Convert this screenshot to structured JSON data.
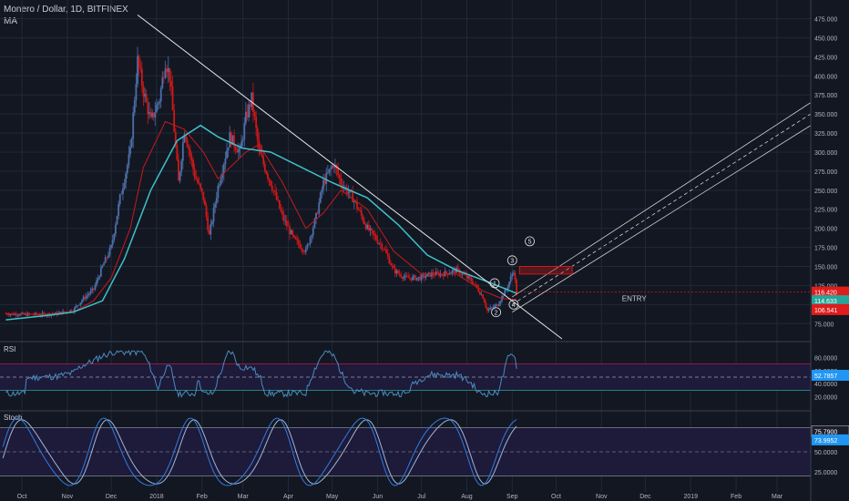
{
  "header": {
    "title": "Monero / Dollar, 1D, BITFINEX",
    "indicator": "MA"
  },
  "colors": {
    "background": "#131722",
    "grid": "#1e2a38",
    "candle_up": "#4d6fa8",
    "candle_down": "#d01818",
    "ma_fast": "#c41c1c",
    "ma_slow": "#3fc1c9",
    "trendline": "#e8e8e8",
    "rsi_line": "#4a8cbf",
    "stoch_k": "#2f7de0",
    "stoch_d": "#9fb6d8",
    "panel_fill": "#1d1a3a",
    "price_red": "#e01c1c",
    "price_teal": "#26a69a",
    "price_blue": "#2196f3"
  },
  "price_axis": {
    "ticks": [
      "475.000",
      "450.000",
      "425.000",
      "400.000",
      "375.000",
      "350.000",
      "325.000",
      "300.000",
      "275.000",
      "250.000",
      "225.000",
      "200.000",
      "175.000",
      "150.000",
      "125.000",
      "100.000",
      "75.000"
    ],
    "label_last": "116.420",
    "label_ma_slow": "114.633",
    "label_ma_fast": "106.541"
  },
  "time_axis": {
    "ticks": [
      "Oct",
      "Nov",
      "Dec",
      "2018",
      "Feb",
      "Mar",
      "Apr",
      "May",
      "Jun",
      "Jul",
      "Aug",
      "Sep",
      "Oct",
      "Nov",
      "Dec",
      "2019",
      "Feb",
      "Mar"
    ]
  },
  "annotations": {
    "entry_label": "ENTRY",
    "waves": [
      "1",
      "2",
      "3",
      "4",
      "5"
    ]
  },
  "rsi_panel": {
    "title": "RSI",
    "ticks": [
      "80.0000",
      "60.0000",
      "40.0000",
      "20.0000"
    ],
    "current": "52.7857"
  },
  "stoch_panel": {
    "title": "Stoch",
    "ticks": [
      "50.0000",
      "25.0000"
    ],
    "current_k": "75.7900",
    "current_d": "73.9952"
  },
  "chart_data": {
    "type": "candlestick",
    "title": "Monero / Dollar, 1D, BITFINEX",
    "xlabel": "",
    "ylabel": "",
    "ylim": [
      55,
      490
    ],
    "x_range": [
      "2017-09-16",
      "2019-03-24"
    ],
    "series": [
      {
        "name": "Close",
        "points": [
          [
            "2017-09-20",
            88
          ],
          [
            "2017-10-01",
            87
          ],
          [
            "2017-10-15",
            87
          ],
          [
            "2017-10-25",
            88
          ],
          [
            "2017-11-05",
            93
          ],
          [
            "2017-11-12",
            108
          ],
          [
            "2017-11-19",
            120
          ],
          [
            "2017-11-25",
            150
          ],
          [
            "2017-12-01",
            175
          ],
          [
            "2017-12-07",
            240
          ],
          [
            "2017-12-14",
            300
          ],
          [
            "2017-12-19",
            420
          ],
          [
            "2017-12-23",
            380
          ],
          [
            "2017-12-28",
            340
          ],
          [
            "2018-01-03",
            370
          ],
          [
            "2018-01-07",
            420
          ],
          [
            "2018-01-10",
            400
          ],
          [
            "2018-01-16",
            260
          ],
          [
            "2018-01-20",
            330
          ],
          [
            "2018-01-27",
            270
          ],
          [
            "2018-02-02",
            240
          ],
          [
            "2018-02-06",
            190
          ],
          [
            "2018-02-12",
            255
          ],
          [
            "2018-02-20",
            320
          ],
          [
            "2018-02-27",
            300
          ],
          [
            "2018-03-03",
            345
          ],
          [
            "2018-03-07",
            370
          ],
          [
            "2018-03-12",
            300
          ],
          [
            "2018-03-20",
            260
          ],
          [
            "2018-03-28",
            215
          ],
          [
            "2018-04-05",
            185
          ],
          [
            "2018-04-13",
            170
          ],
          [
            "2018-04-20",
            215
          ],
          [
            "2018-04-25",
            260
          ],
          [
            "2018-05-02",
            285
          ],
          [
            "2018-05-07",
            260
          ],
          [
            "2018-05-15",
            240
          ],
          [
            "2018-05-25",
            200
          ],
          [
            "2018-06-05",
            175
          ],
          [
            "2018-06-12",
            145
          ],
          [
            "2018-06-20",
            135
          ],
          [
            "2018-06-30",
            135
          ],
          [
            "2018-07-08",
            140
          ],
          [
            "2018-07-15",
            140
          ],
          [
            "2018-07-25",
            145
          ],
          [
            "2018-08-05",
            130
          ],
          [
            "2018-08-12",
            110
          ],
          [
            "2018-08-15",
            92
          ],
          [
            "2018-08-22",
            100
          ],
          [
            "2018-08-28",
            120
          ],
          [
            "2018-09-02",
            145
          ],
          [
            "2018-09-04",
            116
          ]
        ]
      },
      {
        "name": "",
        "points": [
          [
            "2017-09-20",
            88
          ],
          [
            "2017-10-15",
            87
          ],
          [
            "2017-11-05",
            90
          ],
          [
            "2017-11-19",
            105
          ],
          [
            "2017-12-01",
            135
          ],
          [
            "2017-12-14",
            200
          ],
          [
            "2017-12-23",
            280
          ],
          [
            "2018-01-07",
            340
          ],
          [
            "2018-01-20",
            330
          ],
          [
            "2018-02-02",
            300
          ],
          [
            "2018-02-12",
            265
          ],
          [
            "2018-03-03",
            300
          ],
          [
            "2018-03-12",
            310
          ],
          [
            "2018-03-28",
            260
          ],
          [
            "2018-04-13",
            200
          ],
          [
            "2018-04-25",
            220
          ],
          [
            "2018-05-07",
            250
          ],
          [
            "2018-05-25",
            225
          ],
          [
            "2018-06-12",
            170
          ],
          [
            "2018-07-01",
            140
          ],
          [
            "2018-07-25",
            140
          ],
          [
            "2018-08-12",
            118
          ],
          [
            "2018-08-25",
            108
          ],
          [
            "2018-09-04",
            106.541
          ]
        ]
      },
      {
        "name": "",
        "points": [
          [
            "2017-09-20",
            80
          ],
          [
            "2017-10-15",
            85
          ],
          [
            "2017-11-05",
            90
          ],
          [
            "2017-11-25",
            105
          ],
          [
            "2017-12-10",
            160
          ],
          [
            "2017-12-28",
            250
          ],
          [
            "2018-01-15",
            315
          ],
          [
            "2018-01-31",
            335
          ],
          [
            "2018-02-12",
            320
          ],
          [
            "2018-03-01",
            305
          ],
          [
            "2018-03-20",
            300
          ],
          [
            "2018-04-10",
            280
          ],
          [
            "2018-05-01",
            260
          ],
          [
            "2018-05-25",
            240
          ],
          [
            "2018-06-15",
            205
          ],
          [
            "2018-07-05",
            165
          ],
          [
            "2018-07-25",
            145
          ],
          [
            "2018-08-15",
            130
          ],
          [
            "2018-09-04",
            114.633
          ]
        ]
      }
    ]
  }
}
